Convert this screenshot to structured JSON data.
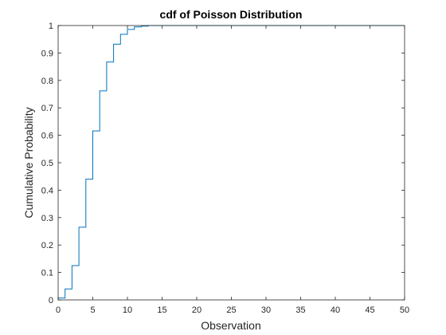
{
  "chart_data": {
    "type": "line",
    "title": "cdf of Poisson Distribution",
    "xlabel": "Observation",
    "ylabel": "Cumulative Probability",
    "xlim": [
      0,
      50
    ],
    "ylim": [
      0,
      1
    ],
    "xticks": [
      0,
      5,
      10,
      15,
      20,
      25,
      30,
      35,
      40,
      45,
      50
    ],
    "yticks": [
      0,
      0.1,
      0.2,
      0.3,
      0.4,
      0.5,
      0.6,
      0.7,
      0.8,
      0.9,
      1
    ],
    "xtick_labels": [
      "0",
      "5",
      "10",
      "15",
      "20",
      "25",
      "30",
      "35",
      "40",
      "45",
      "50"
    ],
    "ytick_labels": [
      "0",
      "0.1",
      "0.2",
      "0.3",
      "0.4",
      "0.5",
      "0.6",
      "0.7",
      "0.8",
      "0.9",
      "1"
    ],
    "grid": false,
    "step": true,
    "series_color": "#0072BD",
    "x": [
      0,
      1,
      2,
      3,
      4,
      5,
      6,
      7,
      8,
      9,
      10,
      11,
      12,
      13,
      50
    ],
    "y": [
      0.007,
      0.04,
      0.125,
      0.265,
      0.44,
      0.616,
      0.762,
      0.867,
      0.932,
      0.968,
      0.986,
      0.995,
      0.998,
      1.0,
      1.0
    ]
  }
}
